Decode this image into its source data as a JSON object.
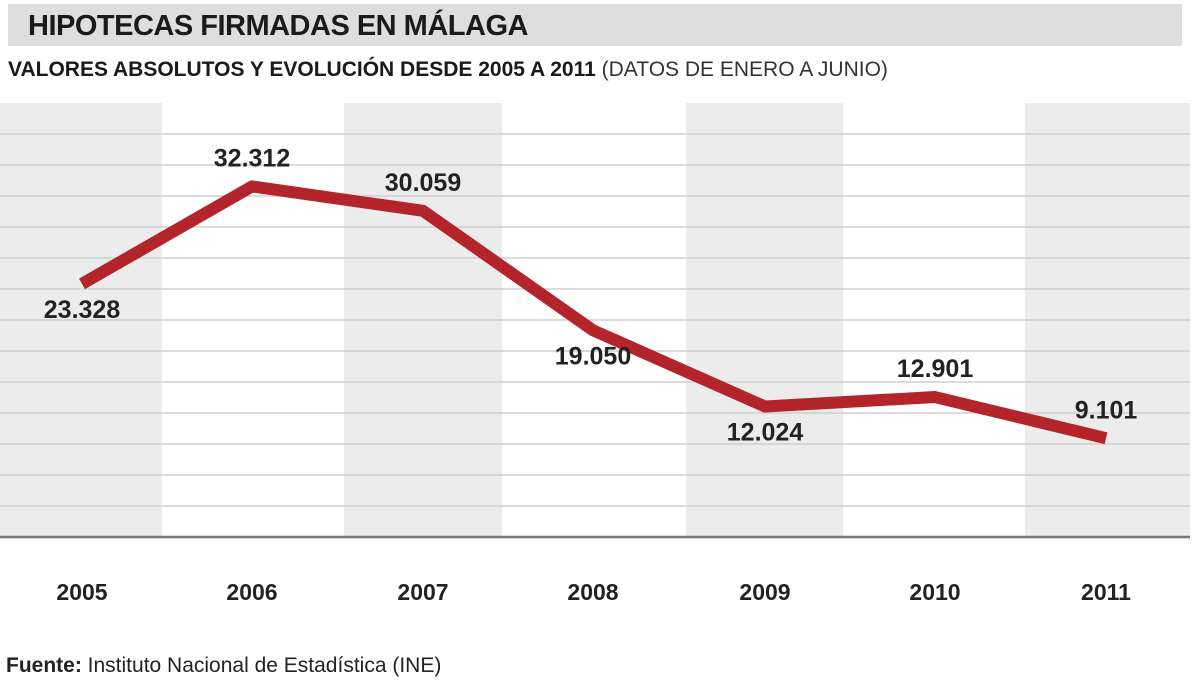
{
  "header": {
    "title": "HIPOTECAS FIRMADAS EN MÁLAGA",
    "subtitle_main": "VALORES ABSOLUTOS Y EVOLUCIÓN DESDE 2005 A 2011",
    "subtitle_note": "(DATOS DE ENERO A JUNIO)"
  },
  "footer": {
    "source_label": "Fuente:",
    "source_text": "Instituto Nacional de Estadística (INE)"
  },
  "colors": {
    "line": "#b3242b",
    "band": "#ececec",
    "grid": "#cfcfcf",
    "title_bar": "#dedede"
  },
  "chart_data": {
    "type": "line",
    "title": "HIPOTECAS FIRMADAS EN MÁLAGA",
    "categories": [
      "2005",
      "2006",
      "2007",
      "2008",
      "2009",
      "2010",
      "2011"
    ],
    "series": [
      {
        "name": "Hipotecas firmadas",
        "values": [
          23328,
          32312,
          30059,
          19050,
          12024,
          12901,
          9101
        ],
        "labels": [
          "23.328",
          "32.312",
          "30.059",
          "19.050",
          "12.024",
          "12.901",
          "9.101"
        ]
      }
    ],
    "xlabel": "",
    "ylabel": "",
    "ylim": [
      0,
      40000
    ],
    "grid": true,
    "legend": "none"
  }
}
